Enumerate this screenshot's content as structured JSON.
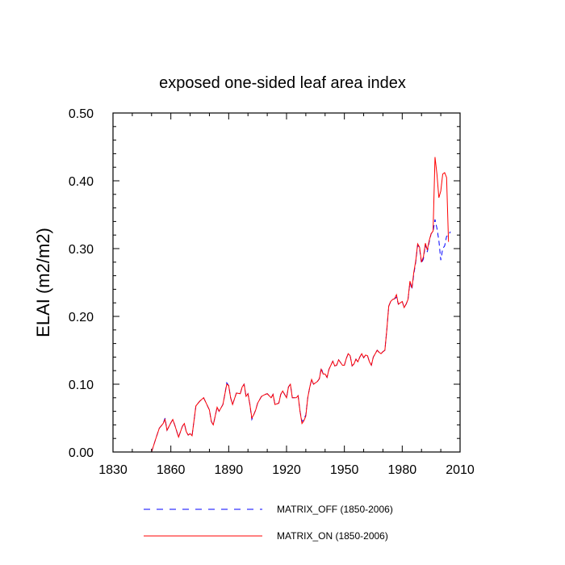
{
  "chart_data": {
    "type": "line",
    "title": "exposed one-sided leaf area index",
    "xlabel": "",
    "ylabel": "ELAI  (m2/m2)",
    "xlim": [
      1830,
      2010
    ],
    "ylim": [
      0,
      0.5
    ],
    "x_ticks": [
      1830,
      1860,
      1890,
      1920,
      1950,
      1980,
      2010
    ],
    "x_tick_labels": [
      "1830",
      "1860",
      "1890",
      "1920",
      "1950",
      "1980",
      "2010"
    ],
    "y_ticks": [
      0,
      0.1,
      0.2,
      0.3,
      0.4,
      0.5
    ],
    "y_tick_labels": [
      "0.00",
      "0.10",
      "0.20",
      "0.30",
      "0.40",
      "0.50"
    ],
    "grid": false,
    "legend_position": "bottom",
    "series": [
      {
        "name": "MATRIX_OFF (1850-2006)",
        "color": "#0000ff",
        "dash": "dashed",
        "points": [
          [
            1850,
            0.0
          ],
          [
            1852,
            0.018
          ],
          [
            1854,
            0.035
          ],
          [
            1856,
            0.042
          ],
          [
            1857,
            0.05
          ],
          [
            1858,
            0.032
          ],
          [
            1860,
            0.043
          ],
          [
            1861,
            0.048
          ],
          [
            1862,
            0.04
          ],
          [
            1864,
            0.022
          ],
          [
            1866,
            0.038
          ],
          [
            1867,
            0.042
          ],
          [
            1868,
            0.03
          ],
          [
            1869,
            0.025
          ],
          [
            1870,
            0.027
          ],
          [
            1871,
            0.024
          ],
          [
            1873,
            0.068
          ],
          [
            1875,
            0.075
          ],
          [
            1877,
            0.08
          ],
          [
            1878,
            0.074
          ],
          [
            1880,
            0.062
          ],
          [
            1881,
            0.045
          ],
          [
            1882,
            0.04
          ],
          [
            1884,
            0.066
          ],
          [
            1885,
            0.06
          ],
          [
            1887,
            0.07
          ],
          [
            1888,
            0.085
          ],
          [
            1889,
            0.102
          ],
          [
            1890,
            0.098
          ],
          [
            1891,
            0.08
          ],
          [
            1892,
            0.07
          ],
          [
            1894,
            0.087
          ],
          [
            1896,
            0.086
          ],
          [
            1897,
            0.096
          ],
          [
            1898,
            0.1
          ],
          [
            1899,
            0.082
          ],
          [
            1900,
            0.086
          ],
          [
            1901,
            0.07
          ],
          [
            1902,
            0.048
          ],
          [
            1903,
            0.055
          ],
          [
            1904,
            0.062
          ],
          [
            1905,
            0.072
          ],
          [
            1907,
            0.082
          ],
          [
            1909,
            0.085
          ],
          [
            1910,
            0.086
          ],
          [
            1912,
            0.08
          ],
          [
            1913,
            0.085
          ],
          [
            1914,
            0.07
          ],
          [
            1916,
            0.072
          ],
          [
            1917,
            0.085
          ],
          [
            1918,
            0.09
          ],
          [
            1920,
            0.08
          ],
          [
            1921,
            0.096
          ],
          [
            1922,
            0.1
          ],
          [
            1923,
            0.08
          ],
          [
            1925,
            0.08
          ],
          [
            1926,
            0.083
          ],
          [
            1927,
            0.06
          ],
          [
            1928,
            0.045
          ],
          [
            1929,
            0.048
          ],
          [
            1930,
            0.055
          ],
          [
            1931,
            0.08
          ],
          [
            1932,
            0.095
          ],
          [
            1933,
            0.107
          ],
          [
            1934,
            0.1
          ],
          [
            1936,
            0.104
          ],
          [
            1937,
            0.108
          ],
          [
            1938,
            0.124
          ],
          [
            1939,
            0.115
          ],
          [
            1940,
            0.115
          ],
          [
            1941,
            0.11
          ],
          [
            1942,
            0.122
          ],
          [
            1943,
            0.128
          ],
          [
            1944,
            0.134
          ],
          [
            1945,
            0.127
          ],
          [
            1946,
            0.128
          ],
          [
            1947,
            0.136
          ],
          [
            1949,
            0.128
          ],
          [
            1950,
            0.128
          ],
          [
            1951,
            0.138
          ],
          [
            1952,
            0.145
          ],
          [
            1953,
            0.142
          ],
          [
            1954,
            0.127
          ],
          [
            1955,
            0.13
          ],
          [
            1956,
            0.137
          ],
          [
            1957,
            0.133
          ],
          [
            1958,
            0.14
          ],
          [
            1959,
            0.145
          ],
          [
            1960,
            0.139
          ],
          [
            1961,
            0.143
          ],
          [
            1962,
            0.142
          ],
          [
            1963,
            0.133
          ],
          [
            1964,
            0.128
          ],
          [
            1965,
            0.14
          ],
          [
            1966,
            0.145
          ],
          [
            1967,
            0.15
          ],
          [
            1968,
            0.147
          ],
          [
            1969,
            0.145
          ],
          [
            1970,
            0.148
          ],
          [
            1971,
            0.15
          ],
          [
            1972,
            0.18
          ],
          [
            1973,
            0.215
          ],
          [
            1974,
            0.222
          ],
          [
            1975,
            0.225
          ],
          [
            1976,
            0.226
          ],
          [
            1977,
            0.228
          ],
          [
            1978,
            0.218
          ],
          [
            1979,
            0.22
          ],
          [
            1980,
            0.222
          ],
          [
            1981,
            0.213
          ],
          [
            1982,
            0.218
          ],
          [
            1983,
            0.225
          ],
          [
            1984,
            0.25
          ],
          [
            1985,
            0.24
          ],
          [
            1986,
            0.262
          ],
          [
            1987,
            0.28
          ],
          [
            1988,
            0.305
          ],
          [
            1989,
            0.3
          ],
          [
            1990,
            0.278
          ],
          [
            1991,
            0.285
          ],
          [
            1992,
            0.306
          ],
          [
            1993,
            0.295
          ],
          [
            1994,
            0.31
          ],
          [
            1995,
            0.322
          ],
          [
            1996,
            0.325
          ],
          [
            1997,
            0.343
          ],
          [
            1998,
            0.33
          ],
          [
            1999,
            0.312
          ],
          [
            2000,
            0.283
          ],
          [
            2001,
            0.3
          ],
          [
            2002,
            0.304
          ],
          [
            2003,
            0.318
          ],
          [
            2004,
            0.32
          ],
          [
            2005,
            0.325
          ]
        ]
      },
      {
        "name": "MATRIX_ON (1850-2006)",
        "color": "#ff0000",
        "dash": "solid",
        "points": [
          [
            1850,
            0.0
          ],
          [
            1852,
            0.018
          ],
          [
            1854,
            0.035
          ],
          [
            1856,
            0.042
          ],
          [
            1857,
            0.048
          ],
          [
            1858,
            0.032
          ],
          [
            1860,
            0.043
          ],
          [
            1861,
            0.048
          ],
          [
            1862,
            0.04
          ],
          [
            1864,
            0.022
          ],
          [
            1866,
            0.038
          ],
          [
            1867,
            0.042
          ],
          [
            1868,
            0.03
          ],
          [
            1869,
            0.025
          ],
          [
            1870,
            0.027
          ],
          [
            1871,
            0.024
          ],
          [
            1873,
            0.068
          ],
          [
            1875,
            0.075
          ],
          [
            1877,
            0.08
          ],
          [
            1878,
            0.074
          ],
          [
            1880,
            0.062
          ],
          [
            1881,
            0.045
          ],
          [
            1882,
            0.04
          ],
          [
            1884,
            0.066
          ],
          [
            1885,
            0.06
          ],
          [
            1887,
            0.07
          ],
          [
            1888,
            0.085
          ],
          [
            1889,
            0.1
          ],
          [
            1890,
            0.098
          ],
          [
            1891,
            0.08
          ],
          [
            1892,
            0.07
          ],
          [
            1894,
            0.087
          ],
          [
            1896,
            0.086
          ],
          [
            1897,
            0.096
          ],
          [
            1898,
            0.1
          ],
          [
            1899,
            0.082
          ],
          [
            1900,
            0.086
          ],
          [
            1901,
            0.07
          ],
          [
            1902,
            0.05
          ],
          [
            1903,
            0.055
          ],
          [
            1904,
            0.062
          ],
          [
            1905,
            0.072
          ],
          [
            1907,
            0.082
          ],
          [
            1909,
            0.085
          ],
          [
            1910,
            0.086
          ],
          [
            1912,
            0.08
          ],
          [
            1913,
            0.085
          ],
          [
            1914,
            0.07
          ],
          [
            1916,
            0.072
          ],
          [
            1917,
            0.085
          ],
          [
            1918,
            0.09
          ],
          [
            1920,
            0.08
          ],
          [
            1921,
            0.096
          ],
          [
            1922,
            0.1
          ],
          [
            1923,
            0.08
          ],
          [
            1925,
            0.08
          ],
          [
            1926,
            0.083
          ],
          [
            1927,
            0.06
          ],
          [
            1928,
            0.042
          ],
          [
            1929,
            0.046
          ],
          [
            1930,
            0.053
          ],
          [
            1931,
            0.08
          ],
          [
            1932,
            0.095
          ],
          [
            1933,
            0.107
          ],
          [
            1934,
            0.1
          ],
          [
            1936,
            0.104
          ],
          [
            1937,
            0.108
          ],
          [
            1938,
            0.122
          ],
          [
            1939,
            0.115
          ],
          [
            1940,
            0.115
          ],
          [
            1941,
            0.11
          ],
          [
            1942,
            0.122
          ],
          [
            1943,
            0.128
          ],
          [
            1944,
            0.134
          ],
          [
            1945,
            0.127
          ],
          [
            1946,
            0.128
          ],
          [
            1947,
            0.136
          ],
          [
            1949,
            0.128
          ],
          [
            1950,
            0.128
          ],
          [
            1951,
            0.138
          ],
          [
            1952,
            0.145
          ],
          [
            1953,
            0.142
          ],
          [
            1954,
            0.127
          ],
          [
            1955,
            0.13
          ],
          [
            1956,
            0.137
          ],
          [
            1957,
            0.133
          ],
          [
            1958,
            0.14
          ],
          [
            1959,
            0.145
          ],
          [
            1960,
            0.139
          ],
          [
            1961,
            0.143
          ],
          [
            1962,
            0.142
          ],
          [
            1963,
            0.133
          ],
          [
            1964,
            0.128
          ],
          [
            1965,
            0.14
          ],
          [
            1966,
            0.145
          ],
          [
            1967,
            0.15
          ],
          [
            1968,
            0.147
          ],
          [
            1969,
            0.145
          ],
          [
            1970,
            0.148
          ],
          [
            1971,
            0.15
          ],
          [
            1972,
            0.18
          ],
          [
            1973,
            0.215
          ],
          [
            1974,
            0.222
          ],
          [
            1975,
            0.225
          ],
          [
            1976,
            0.226
          ],
          [
            1977,
            0.232
          ],
          [
            1978,
            0.218
          ],
          [
            1979,
            0.22
          ],
          [
            1980,
            0.222
          ],
          [
            1981,
            0.213
          ],
          [
            1982,
            0.218
          ],
          [
            1983,
            0.225
          ],
          [
            1984,
            0.252
          ],
          [
            1985,
            0.242
          ],
          [
            1986,
            0.265
          ],
          [
            1987,
            0.282
          ],
          [
            1988,
            0.307
          ],
          [
            1989,
            0.302
          ],
          [
            1990,
            0.28
          ],
          [
            1991,
            0.288
          ],
          [
            1992,
            0.308
          ],
          [
            1993,
            0.298
          ],
          [
            1994,
            0.312
          ],
          [
            1995,
            0.322
          ],
          [
            1996,
            0.326
          ],
          [
            1997,
            0.435
          ],
          [
            1998,
            0.41
          ],
          [
            1999,
            0.375
          ],
          [
            2000,
            0.385
          ],
          [
            2001,
            0.41
          ],
          [
            2002,
            0.412
          ],
          [
            2003,
            0.405
          ],
          [
            2004,
            0.31
          ]
        ]
      }
    ]
  }
}
